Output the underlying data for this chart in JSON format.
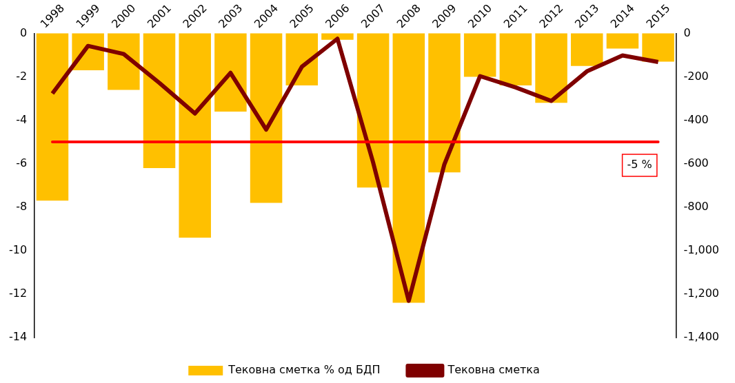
{
  "chart_data": {
    "type": "bar",
    "categories": [
      "1998",
      "1999",
      "2000",
      "2001",
      "2002",
      "2003",
      "2004",
      "2005",
      "2006",
      "2007",
      "2008",
      "2009",
      "2010",
      "2011",
      "2012",
      "2013",
      "2014",
      "2015"
    ],
    "series": [
      {
        "name": "Тековна сметка % од БДП",
        "color": "#ffc000",
        "values": [
          -7.7,
          -1.7,
          -2.6,
          -6.2,
          -9.4,
          -3.6,
          -7.8,
          -2.4,
          -0.3,
          -7.1,
          -12.4,
          -6.4,
          -2.0,
          -2.4,
          -3.2,
          -1.5,
          -0.7,
          -1.3
        ]
      },
      {
        "name": "Тековна сметка",
        "type": "line",
        "axis": "y2",
        "color": "#7f0000",
        "values": [
          -277,
          -58,
          -95,
          -228,
          -369,
          -182,
          -443,
          -154,
          -25,
          -594,
          -1231,
          -603,
          -197,
          -249,
          -311,
          -175,
          -102,
          -132
        ]
      }
    ],
    "ylim": [
      -14,
      0
    ],
    "yticks": [
      -14,
      -12,
      -10,
      -8,
      -6,
      -4,
      -2,
      0
    ],
    "y2lim": [
      -1400,
      0
    ],
    "y2ticks": [
      {
        "value": -1400,
        "label": "-1,400"
      },
      {
        "value": -1200,
        "label": "-1,200"
      },
      {
        "value": -1000,
        "label": "-1,000"
      },
      -800,
      -600,
      -400,
      -200,
      0
    ],
    "ref_lines": [
      {
        "axis": "y",
        "value": -5,
        "label": "-5 %",
        "color": "#ff0000"
      }
    ],
    "grid": false,
    "legend": "bottom"
  }
}
